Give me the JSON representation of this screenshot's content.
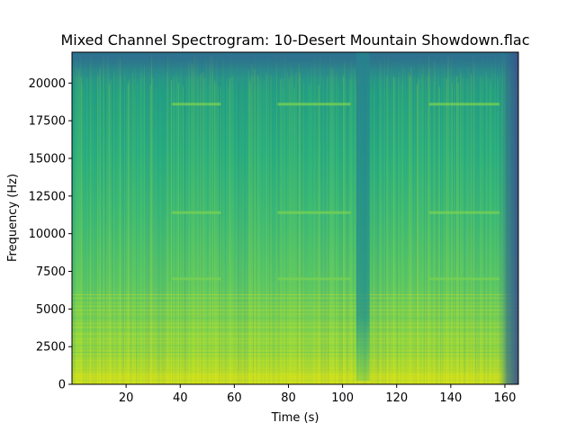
{
  "chart_data": {
    "type": "heatmap",
    "title": "Mixed Channel Spectrogram: 10-Desert Mountain Showdown.flac",
    "xlabel": "Time (s)",
    "ylabel": "Frequency (Hz)",
    "xlim": [
      0,
      165
    ],
    "ylim": [
      0,
      22050
    ],
    "xticks": [
      20,
      40,
      60,
      80,
      100,
      120,
      140,
      160
    ],
    "yticks": [
      0,
      2500,
      5000,
      7500,
      10000,
      12500,
      15000,
      17500,
      20000
    ],
    "colormap": "viridis",
    "grid": false,
    "features": {
      "quiet_time_range": [
        105,
        110
      ],
      "fade_out_start": 158,
      "harmonic_bands_hz": [
        7000,
        11400,
        18600
      ],
      "harmonic_band_time_ranges": [
        [
          37,
          55
        ],
        [
          76,
          103
        ],
        [
          132,
          158
        ]
      ]
    }
  }
}
